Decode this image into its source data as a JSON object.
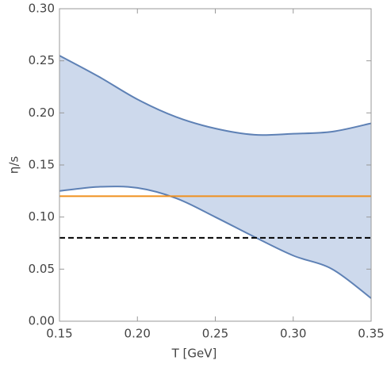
{
  "chart_data": {
    "type": "area",
    "x_label": "T [GeV]",
    "y_label": "η/s",
    "band": {
      "x": [
        0.15,
        0.175,
        0.2,
        0.225,
        0.25,
        0.275,
        0.3,
        0.325,
        0.35
      ],
      "upper": [
        0.255,
        0.235,
        0.213,
        0.196,
        0.185,
        0.179,
        0.18,
        0.182,
        0.19
      ],
      "lower": [
        0.125,
        0.129,
        0.128,
        0.118,
        0.1,
        0.081,
        0.063,
        0.05,
        0.022
      ],
      "color": "#5e81b5",
      "fill": "#c8d5ea"
    },
    "lines": [
      {
        "value": 0.12,
        "color": "#f0901e",
        "dashed": false
      },
      {
        "value": 0.08,
        "color": "#000000",
        "dashed": true
      }
    ],
    "xlim": [
      0.15,
      0.35
    ],
    "ylim": [
      0,
      0.3
    ],
    "xticks": [
      0.15,
      {
        "value": 0.2,
        "label": "0.20"
      },
      0.25,
      {
        "value": 0.3,
        "label": "0.30"
      },
      0.35
    ],
    "yticks": [
      {
        "value": 0,
        "label": "0.00"
      },
      0.05,
      {
        "value": 0.1,
        "label": "0.10"
      },
      0.15,
      {
        "value": 0.2,
        "label": "0.20"
      },
      0.25,
      {
        "value": 0.3,
        "label": "0.30"
      }
    ]
  }
}
